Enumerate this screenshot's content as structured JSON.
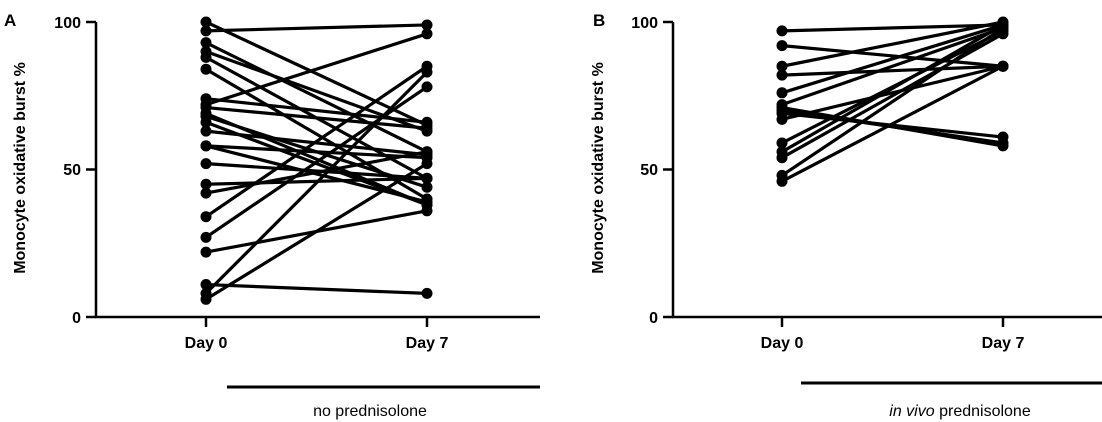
{
  "chart_data": [
    {
      "type": "line",
      "panel": "A",
      "categories": [
        "Day 0",
        "Day 7"
      ],
      "ylabel": "Monocyte oxidative burst %",
      "yticks": [
        0,
        50,
        100
      ],
      "ylim": [
        0,
        100
      ],
      "group_label": "no prednisolone",
      "series": [
        {
          "values": [
            100,
            65
          ]
        },
        {
          "values": [
            97,
            99
          ]
        },
        {
          "values": [
            93,
            56
          ]
        },
        {
          "values": [
            90,
            63
          ]
        },
        {
          "values": [
            88,
            47
          ]
        },
        {
          "values": [
            84,
            40
          ]
        },
        {
          "values": [
            74,
            66
          ]
        },
        {
          "values": [
            72,
            96
          ]
        },
        {
          "values": [
            71,
            64
          ]
        },
        {
          "values": [
            69,
            38
          ]
        },
        {
          "values": [
            68,
            44
          ]
        },
        {
          "values": [
            66,
            38
          ]
        },
        {
          "values": [
            63,
            55
          ]
        },
        {
          "values": [
            58,
            54
          ]
        },
        {
          "values": [
            58,
            39
          ]
        },
        {
          "values": [
            52,
            47
          ]
        },
        {
          "values": [
            45,
            47
          ]
        },
        {
          "values": [
            42,
            56
          ]
        },
        {
          "values": [
            34,
            85
          ]
        },
        {
          "values": [
            27,
            78
          ]
        },
        {
          "values": [
            22,
            36
          ]
        },
        {
          "values": [
            11,
            8
          ]
        },
        {
          "values": [
            8,
            83
          ]
        },
        {
          "values": [
            6,
            52
          ]
        }
      ]
    },
    {
      "type": "line",
      "panel": "B",
      "categories": [
        "Day 0",
        "Day 7"
      ],
      "ylabel": "Monocyte oxidative burst %",
      "yticks": [
        0,
        50,
        100
      ],
      "ylim": [
        0,
        100
      ],
      "group_label_italic": "in vivo",
      "group_label_rest": " prednisolone",
      "series": [
        {
          "values": [
            97,
            99
          ]
        },
        {
          "values": [
            92,
            85
          ]
        },
        {
          "values": [
            85,
            100
          ]
        },
        {
          "values": [
            82,
            85
          ]
        },
        {
          "values": [
            76,
            99
          ]
        },
        {
          "values": [
            72,
            98
          ]
        },
        {
          "values": [
            71,
            58
          ]
        },
        {
          "values": [
            70,
            59
          ]
        },
        {
          "values": [
            69,
            61
          ]
        },
        {
          "values": [
            67,
            85
          ]
        },
        {
          "values": [
            59,
            97
          ]
        },
        {
          "values": [
            56,
            99
          ]
        },
        {
          "values": [
            54,
            96
          ]
        },
        {
          "values": [
            48,
            98
          ]
        },
        {
          "values": [
            46,
            85
          ]
        }
      ]
    }
  ]
}
